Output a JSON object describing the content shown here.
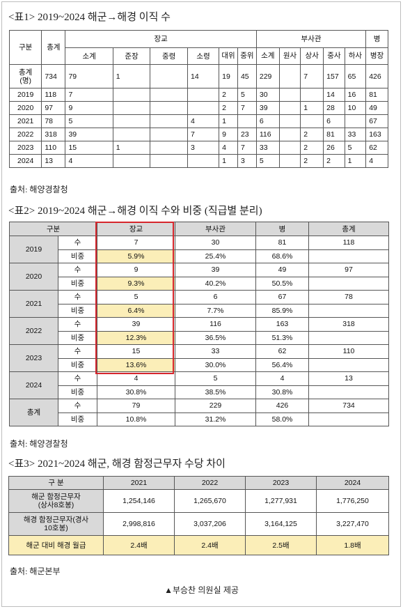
{
  "table1": {
    "title": "<표1> 2019~2024 해군→해경 이직 수",
    "headers": {
      "gubun": "구분",
      "total": "총계",
      "officer_group": "장교",
      "nco_group": "부사관",
      "enlisted": "병",
      "enlisted_sub": "병장",
      "officer_cols": [
        "소계",
        "준장",
        "중령",
        "소령",
        "대위",
        "중위"
      ],
      "nco_cols": [
        "소계",
        "원사",
        "상사",
        "중사",
        "하사"
      ]
    },
    "rows": [
      {
        "label": "총계\n(명)",
        "cells": [
          "734",
          "79",
          "1",
          "",
          "14",
          "19",
          "45",
          "229",
          "",
          "7",
          "157",
          "65",
          "426"
        ]
      },
      {
        "label": "2019",
        "cells": [
          "118",
          "7",
          "",
          "",
          "",
          "2",
          "5",
          "30",
          "",
          "",
          "14",
          "16",
          "81"
        ]
      },
      {
        "label": "2020",
        "cells": [
          "97",
          "9",
          "",
          "",
          "",
          "2",
          "7",
          "39",
          "",
          "1",
          "28",
          "10",
          "49"
        ]
      },
      {
        "label": "2021",
        "cells": [
          "78",
          "5",
          "",
          "",
          "4",
          "1",
          "",
          "6",
          "",
          "",
          "6",
          "",
          "67"
        ]
      },
      {
        "label": "2022",
        "cells": [
          "318",
          "39",
          "",
          "",
          "7",
          "9",
          "23",
          "116",
          "",
          "2",
          "81",
          "33",
          "163"
        ]
      },
      {
        "label": "2023",
        "cells": [
          "110",
          "15",
          "1",
          "",
          "3",
          "4",
          "7",
          "33",
          "",
          "2",
          "26",
          "5",
          "62"
        ]
      },
      {
        "label": "2024",
        "cells": [
          "13",
          "4",
          "",
          "",
          "",
          "1",
          "3",
          "5",
          "",
          "2",
          "2",
          "1",
          "4"
        ]
      }
    ],
    "source": "출처: 해양경찰청"
  },
  "table2": {
    "title": "<표2> 2019~2024 해군→해경 이직 수와 비중 (직급별 분리)",
    "headers": [
      "구분",
      "장교",
      "부사관",
      "병",
      "총계"
    ],
    "count_label": "수",
    "share_label": "비중",
    "rows": [
      {
        "year": "2019",
        "count": [
          "7",
          "30",
          "81",
          "118"
        ],
        "share": [
          "5.9%",
          "25.4%",
          "68.6%",
          ""
        ]
      },
      {
        "year": "2020",
        "count": [
          "9",
          "39",
          "49",
          "97"
        ],
        "share": [
          "9.3%",
          "40.2%",
          "50.5%",
          ""
        ]
      },
      {
        "year": "2021",
        "count": [
          "5",
          "6",
          "67",
          "78"
        ],
        "share": [
          "6.4%",
          "7.7%",
          "85.9%",
          ""
        ]
      },
      {
        "year": "2022",
        "count": [
          "39",
          "116",
          "163",
          "318"
        ],
        "share": [
          "12.3%",
          "36.5%",
          "51.3%",
          ""
        ]
      },
      {
        "year": "2023",
        "count": [
          "15",
          "33",
          "62",
          "110"
        ],
        "share": [
          "13.6%",
          "30.0%",
          "56.4%",
          ""
        ]
      },
      {
        "year": "2024",
        "count": [
          "4",
          "5",
          "4",
          "13"
        ],
        "share": [
          "30.8%",
          "38.5%",
          "30.8%",
          ""
        ]
      },
      {
        "year": "총계",
        "count": [
          "79",
          "229",
          "426",
          "734"
        ],
        "share": [
          "10.8%",
          "31.2%",
          "58.0%",
          ""
        ]
      }
    ],
    "source": "출처: 해양경찰청"
  },
  "table3": {
    "title": "<표3> 2021~2024 해군, 해경 함정근무자 수당 차이",
    "headers": [
      "구 분",
      "2021",
      "2022",
      "2023",
      "2024"
    ],
    "rows": [
      {
        "label": "해군 함정근무자\n(상사8호봉)",
        "cells": [
          "1,254,146",
          "1,265,670",
          "1,277,931",
          "1,776,250"
        ]
      },
      {
        "label": "해경 함정근무자(경사\n10호봉)",
        "cells": [
          "2,998,816",
          "3,037,206",
          "3,164,125",
          "3,227,470"
        ]
      },
      {
        "label": "해군 대비 해경 월급",
        "cells": [
          "2.4배",
          "2.4배",
          "2.5배",
          "1.8배"
        ]
      }
    ],
    "source": "출처: 해군본부"
  },
  "credit": "▲부승찬 의원실 제공",
  "colors": {
    "highlight": "#fbeeb8",
    "header_gray": "#d9d9d9",
    "red_box": "#d6262c"
  }
}
